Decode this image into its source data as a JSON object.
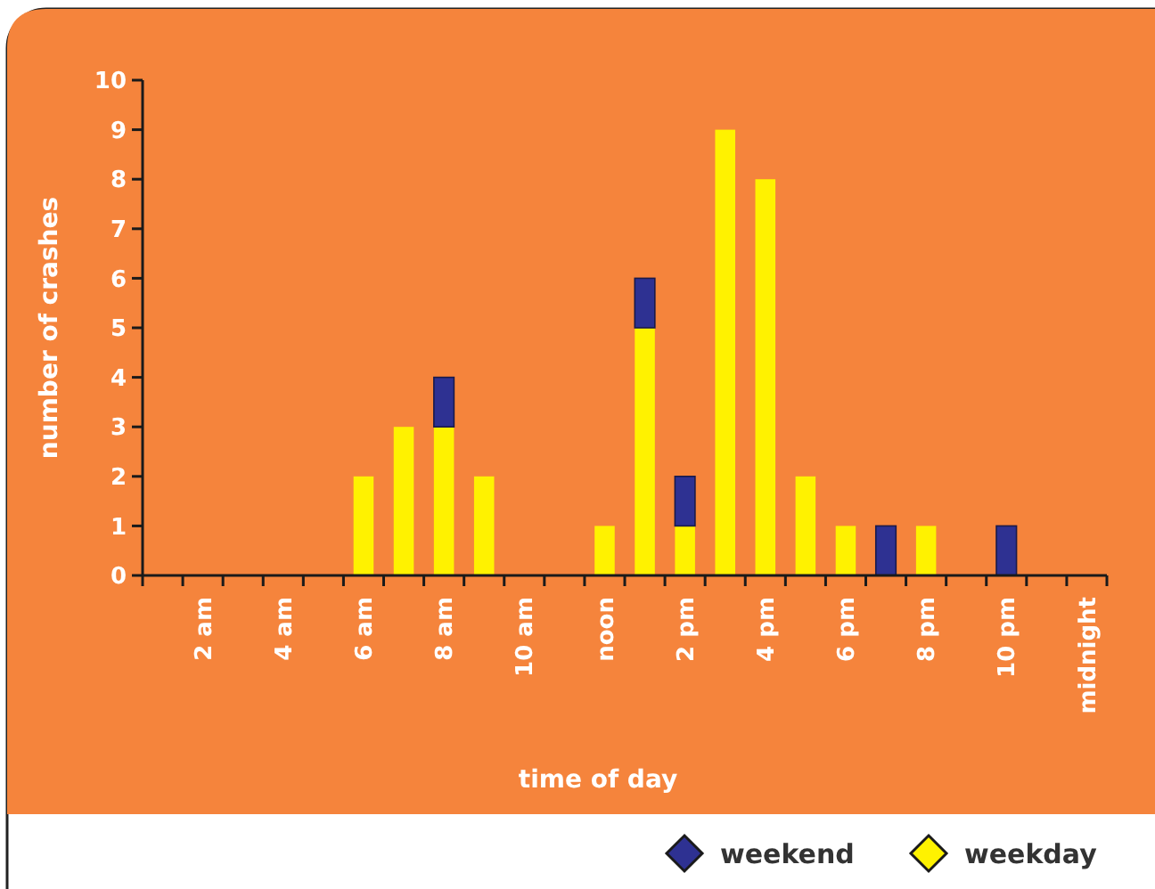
{
  "chart_data": {
    "type": "bar",
    "stacked": true,
    "xlabel": "time of day",
    "ylabel": "number of crashes",
    "categories": [
      null,
      "2 am",
      null,
      "4 am",
      null,
      "6 am",
      null,
      "8 am",
      null,
      "10 am",
      null,
      "noon",
      null,
      "2 pm",
      null,
      "4 pm",
      null,
      "6 pm",
      null,
      "8 pm",
      null,
      "10 pm",
      null,
      "midnight"
    ],
    "series": [
      {
        "name": "weekday",
        "color": "#fff200",
        "values": [
          0,
          0,
          0,
          0,
          0,
          2,
          3,
          3,
          2,
          0,
          0,
          1,
          5,
          1,
          9,
          8,
          2,
          1,
          0,
          1,
          0,
          0,
          0,
          0
        ]
      },
      {
        "name": "weekend",
        "color": "#2e3192",
        "values": [
          0,
          0,
          0,
          0,
          0,
          0,
          0,
          1,
          0,
          0,
          0,
          0,
          1,
          1,
          0,
          0,
          0,
          0,
          1,
          0,
          0,
          1,
          0,
          0
        ]
      }
    ],
    "ylim": [
      0,
      10
    ],
    "yticks": [
      0,
      1,
      2,
      3,
      4,
      5,
      6,
      7,
      8,
      9,
      10
    ],
    "grid": false,
    "legend": "bottom right"
  }
}
